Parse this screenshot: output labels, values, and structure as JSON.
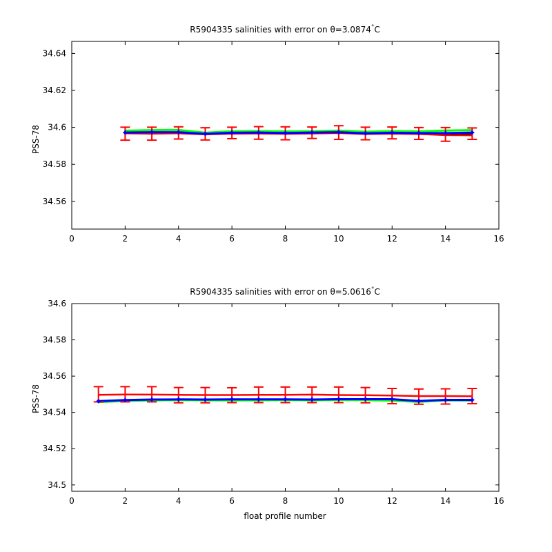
{
  "chart_data": [
    {
      "type": "line",
      "title_prefix": "R5904335 salinities with error on θ=3.0874",
      "title_unit": "C",
      "title_degree": "°",
      "xlabel": "",
      "ylabel": "PSS-78",
      "xlim": [
        0,
        16
      ],
      "ylim": [
        34.545,
        34.6465
      ],
      "xticks": [
        0,
        2,
        4,
        6,
        8,
        10,
        12,
        14,
        16
      ],
      "yticks": [
        34.56,
        34.58,
        34.6,
        34.62,
        34.64
      ],
      "ytick_labels": [
        "34.56",
        "34.58",
        "34.6",
        "34.62",
        "34.64"
      ],
      "grid": false,
      "x": [
        2,
        3,
        4,
        5,
        6,
        7,
        8,
        9,
        10,
        11,
        12,
        13,
        14,
        15
      ],
      "series": [
        {
          "color": "#00ff00",
          "width": 3,
          "values": [
            34.5982,
            34.5985,
            34.5986,
            34.5971,
            34.5979,
            34.598,
            34.5978,
            34.5979,
            34.5983,
            34.5976,
            34.598,
            34.5978,
            34.5983,
            34.5985
          ]
        },
        {
          "color": "#000000",
          "width": 1.5,
          "values": [
            34.5973,
            34.5972,
            34.5974,
            34.5965,
            34.597,
            34.597,
            34.5968,
            34.597,
            34.5972,
            34.5967,
            34.5969,
            34.5967,
            34.5964,
            34.5964
          ]
        },
        {
          "color": "#ff0000",
          "width": 2.5,
          "values": [
            34.5968,
            34.5966,
            34.5968,
            34.5962,
            34.5966,
            34.5967,
            34.5965,
            34.5967,
            34.5969,
            34.5964,
            34.5966,
            34.5964,
            34.5958,
            34.5957
          ]
        },
        {
          "color": "#0000ff",
          "width": 3,
          "markers": true,
          "values": [
            34.5972,
            34.5974,
            34.5974,
            34.5965,
            34.5971,
            34.5972,
            34.597,
            34.5972,
            34.5974,
            34.5968,
            34.5971,
            34.5969,
            34.5969,
            34.5972
          ]
        }
      ],
      "error_bars": {
        "color": "#ff0000",
        "center": [
          34.5966,
          34.5966,
          34.597,
          34.5965,
          34.597,
          34.597,
          34.5968,
          34.5971,
          34.5972,
          34.5967,
          34.597,
          34.5967,
          34.5962,
          34.5966
        ],
        "halfwidth": [
          0.0035,
          0.0035,
          0.0033,
          0.0033,
          0.0031,
          0.0034,
          0.0035,
          0.0031,
          0.0037,
          0.0034,
          0.0032,
          0.0032,
          0.0037,
          0.0031
        ]
      }
    },
    {
      "type": "line",
      "title_prefix": "R5904335 salinities with error on θ=5.0616",
      "title_unit": "C",
      "title_degree": "°",
      "xlabel": "float profile number",
      "ylabel": "PSS-78",
      "xlim": [
        0,
        16
      ],
      "ylim": [
        34.4965,
        34.6
      ],
      "xticks": [
        0,
        2,
        4,
        6,
        8,
        10,
        12,
        14,
        16
      ],
      "yticks": [
        34.5,
        34.52,
        34.54,
        34.56,
        34.58,
        34.6
      ],
      "ytick_labels": [
        "34.5",
        "34.52",
        "34.54",
        "34.56",
        "34.58",
        "34.6"
      ],
      "grid": false,
      "x": [
        1,
        2,
        3,
        4,
        5,
        6,
        7,
        8,
        9,
        10,
        11,
        12,
        13,
        14,
        15
      ],
      "series": [
        {
          "color": "#00ff00",
          "width": 3,
          "values": [
            34.5457,
            34.5463,
            34.5466,
            34.5468,
            34.5467,
            34.5466,
            34.5467,
            34.5468,
            34.5467,
            34.5469,
            34.5468,
            34.5465,
            34.5458,
            34.5466,
            34.5465
          ]
        },
        {
          "color": "#ff0000",
          "width": 2.5,
          "values": [
            34.5497,
            34.5499,
            34.5498,
            34.5497,
            34.5496,
            34.5496,
            34.5497,
            34.5497,
            34.5498,
            34.5496,
            34.5495,
            34.5493,
            34.549,
            34.549,
            34.5489
          ]
        },
        {
          "color": "#ff0000",
          "width": 1.5,
          "values": [
            34.5465,
            34.5468,
            34.5471,
            34.5472,
            34.5471,
            34.5472,
            34.5472,
            34.5472,
            34.5473,
            34.5475,
            34.5474,
            34.5473,
            34.5465,
            34.547,
            34.5468
          ]
        },
        {
          "color": "#0000ff",
          "width": 3,
          "markers": true,
          "values": [
            34.5462,
            34.5468,
            34.5471,
            34.5472,
            34.5471,
            34.5472,
            34.5472,
            34.5472,
            34.5471,
            34.5473,
            34.5473,
            34.5473,
            34.5463,
            34.5469,
            34.5469
          ]
        }
      ],
      "error_bars": {
        "color": "#ff0000",
        "center": [
          34.55,
          34.55,
          34.55,
          34.5495,
          34.5495,
          34.5495,
          34.5497,
          34.5497,
          34.5497,
          34.5497,
          34.5495,
          34.549,
          34.5487,
          34.5488,
          34.549
        ],
        "halfwidth": [
          0.0042,
          0.0042,
          0.0042,
          0.0042,
          0.0042,
          0.0041,
          0.0043,
          0.0043,
          0.0043,
          0.0043,
          0.0042,
          0.0042,
          0.0042,
          0.0042,
          0.0042
        ]
      }
    }
  ]
}
